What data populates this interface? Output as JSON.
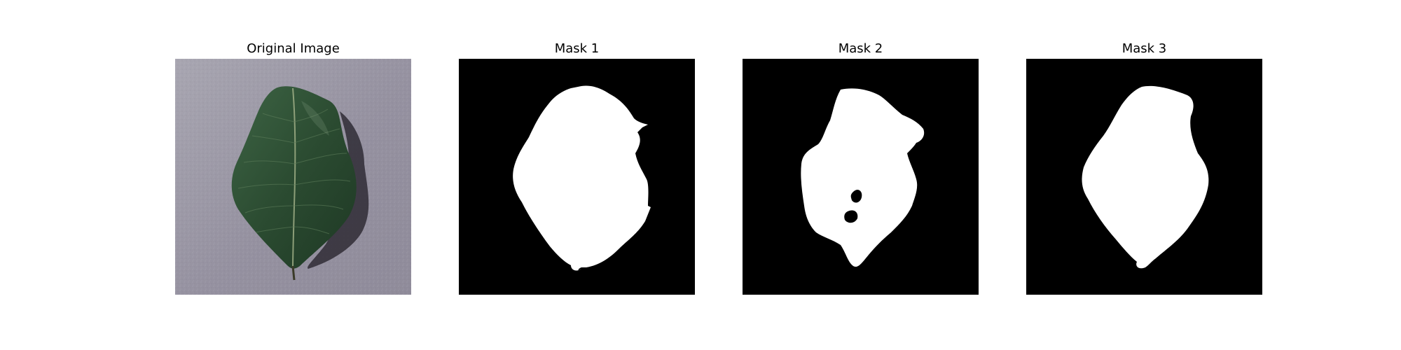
{
  "figure": {
    "panels": [
      {
        "id": "original",
        "title": "Original Image",
        "content": "leaf-photo"
      },
      {
        "id": "mask1",
        "title": "Mask 1",
        "content": "binary-mask"
      },
      {
        "id": "mask2",
        "title": "Mask 2",
        "content": "binary-mask"
      },
      {
        "id": "mask3",
        "title": "Mask 3",
        "content": "binary-mask"
      }
    ],
    "colors": {
      "background": "#ffffff",
      "mask_foreground": "#ffffff",
      "mask_background": "#000000",
      "leaf_dark": "#24432a",
      "leaf_mid": "#355a3d",
      "surface": "#9b97a3"
    }
  }
}
